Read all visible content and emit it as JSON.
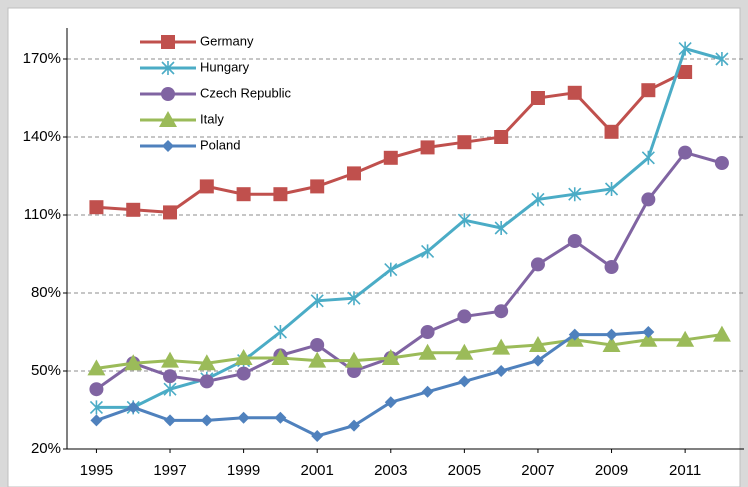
{
  "chart_data": {
    "type": "line",
    "x": [
      1995,
      1996,
      1997,
      1998,
      1999,
      2000,
      2001,
      2002,
      2003,
      2004,
      2005,
      2006,
      2007,
      2008,
      2009,
      2010,
      2011,
      2012
    ],
    "xlim": [
      1994.2,
      2012.6
    ],
    "xticks": [
      1995,
      1997,
      1999,
      2001,
      2003,
      2005,
      2007,
      2009,
      2011
    ],
    "ylim": [
      20,
      180
    ],
    "yticks": [
      {
        "value": 20,
        "label": "20%"
      },
      {
        "value": 50,
        "label": "50%"
      },
      {
        "value": 80,
        "label": "80%"
      },
      {
        "value": 110,
        "label": "110%"
      },
      {
        "value": 140,
        "label": "140%"
      },
      {
        "value": 170,
        "label": "170%"
      }
    ],
    "grid": true,
    "legend": "upper left",
    "series": [
      {
        "name": "Germany",
        "color": "#c0504d",
        "marker": "square",
        "values": [
          113,
          112,
          111,
          121,
          118,
          118,
          121,
          126,
          132,
          136,
          138,
          140,
          155,
          157,
          142,
          158,
          165,
          null
        ]
      },
      {
        "name": "Hungary",
        "color": "#4bacc6",
        "marker": "star",
        "values": [
          36,
          36,
          43,
          47,
          54,
          65,
          77,
          78,
          89,
          96,
          108,
          105,
          116,
          118,
          120,
          132,
          174,
          170
        ]
      },
      {
        "name": "Czech Republic",
        "color": "#8064a2",
        "marker": "circle",
        "values": [
          43,
          53,
          48,
          46,
          49,
          56,
          60,
          50,
          55,
          65,
          71,
          73,
          91,
          100,
          90,
          116,
          134,
          130
        ]
      },
      {
        "name": "Italy",
        "color": "#9bbb59",
        "marker": "triangle",
        "values": [
          51,
          53,
          54,
          53,
          55,
          55,
          54,
          54,
          55,
          57,
          57,
          59,
          60,
          62,
          60,
          62,
          62,
          64
        ]
      },
      {
        "name": "Poland",
        "color": "#4f81bd",
        "marker": "diamond",
        "values": [
          31,
          36,
          31,
          31,
          32,
          32,
          25,
          29,
          38,
          42,
          46,
          50,
          54,
          64,
          64,
          65,
          null,
          null
        ]
      }
    ]
  }
}
